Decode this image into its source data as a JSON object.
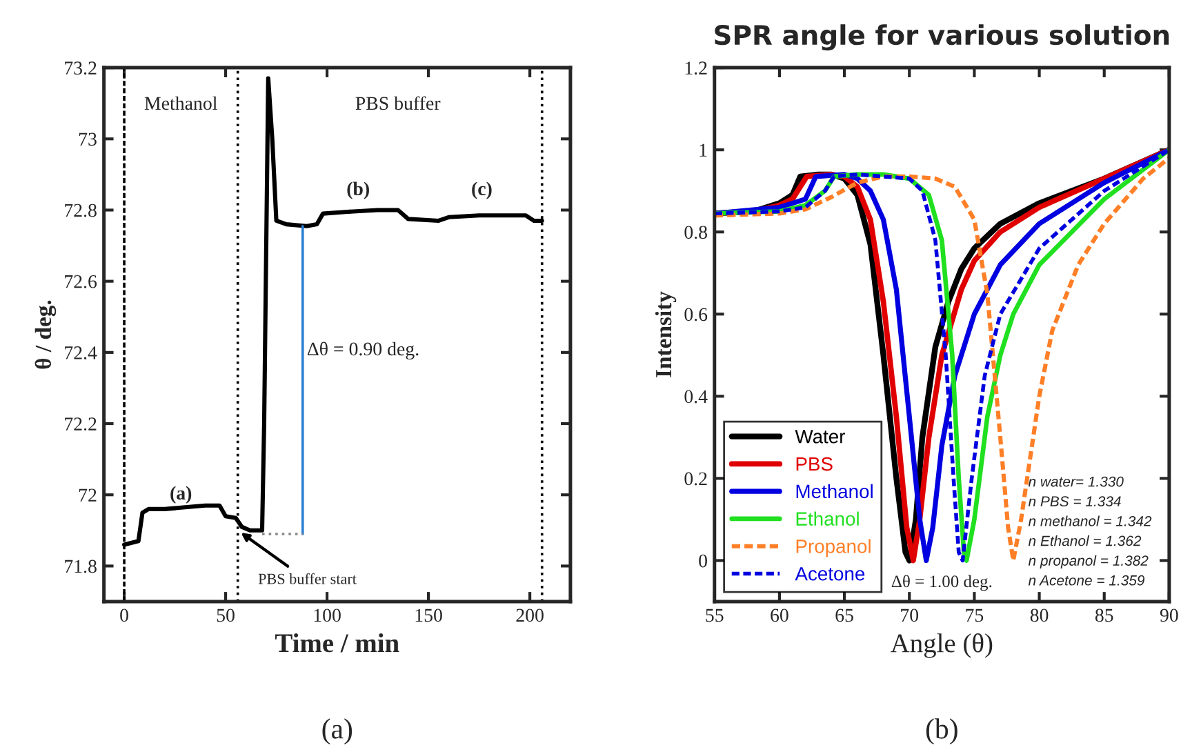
{
  "chart_data": [
    {
      "type": "line",
      "xlabel": "Time / min",
      "ylabel": "θ / deg.",
      "xlim": [
        -10,
        220
      ],
      "ylim": [
        71.7,
        73.2
      ],
      "xticks": [
        0,
        50,
        100,
        150,
        200
      ],
      "yticks": [
        71.8,
        72,
        72.2,
        72.4,
        72.6,
        72.8,
        73,
        73.2
      ],
      "grid": false,
      "legend": false,
      "series": [
        {
          "color": "#000000",
          "x": [
            0,
            7,
            9,
            12,
            20,
            30,
            40,
            47,
            50,
            55,
            58,
            62,
            68,
            69,
            71,
            73,
            75,
            80,
            90,
            95,
            98,
            110,
            125,
            135,
            140,
            155,
            160,
            175,
            198,
            202,
            206
          ],
          "values": [
            71.86,
            71.87,
            71.95,
            71.96,
            71.96,
            71.965,
            71.97,
            71.97,
            71.94,
            71.935,
            71.91,
            71.9,
            71.9,
            72.2,
            73.17,
            73.0,
            72.77,
            72.76,
            72.755,
            72.76,
            72.79,
            72.795,
            72.8,
            72.8,
            72.775,
            72.77,
            72.78,
            72.785,
            72.785,
            72.77,
            72.77
          ]
        },
        {
          "color": "#2a7fd4",
          "x": [
            88,
            88
          ],
          "values": [
            71.89,
            72.755
          ]
        },
        {
          "color": "#888888",
          "line_style": "dotted",
          "x": [
            68,
            88
          ],
          "values": [
            71.89,
            71.89
          ]
        }
      ],
      "ref_lines": [
        {
          "axis": "x",
          "value": 0,
          "line_style": "dashed",
          "color": "#000000"
        },
        {
          "axis": "x",
          "value": 56,
          "line_style": "dotted",
          "color": "#000000"
        },
        {
          "axis": "x",
          "value": 206,
          "line_style": "dotted",
          "color": "#000000"
        }
      ],
      "annotations": [
        "(a)",
        "Methanol",
        "PBS buffer",
        "(a)",
        "(b)",
        "(c)",
        "Δθ = 0.90 deg.",
        {
          "text": "PBS buffer start",
          "x": 56,
          "y": 71.9
        }
      ]
    },
    {
      "type": "line",
      "title": "SPR angle for various solution",
      "xlabel": "Angle (θ)",
      "ylabel": "Intensity",
      "xlim": [
        55,
        90
      ],
      "ylim": [
        -0.1,
        1.2
      ],
      "xticks": [
        55,
        60,
        65,
        70,
        75,
        80,
        85,
        90
      ],
      "yticks": [
        0,
        0.2,
        0.4,
        0.6,
        0.8,
        1,
        1.2
      ],
      "grid": false,
      "legend": "bottom left",
      "series": [
        {
          "name": "Water",
          "color": "#000000",
          "x": [
            55,
            58,
            60,
            61,
            61.6,
            63,
            64,
            65,
            66,
            67,
            68,
            69,
            69.7,
            70,
            70.5,
            71,
            72,
            73,
            74,
            75,
            77,
            80,
            85,
            90
          ],
          "values": [
            0.845,
            0.85,
            0.87,
            0.89,
            0.935,
            0.94,
            0.94,
            0.93,
            0.89,
            0.77,
            0.5,
            0.2,
            0.02,
            0.0,
            0.1,
            0.3,
            0.52,
            0.63,
            0.71,
            0.76,
            0.82,
            0.87,
            0.93,
            1.0
          ]
        },
        {
          "name": "PBS",
          "color": "#e00000",
          "x": [
            55,
            58,
            60,
            61,
            62.1,
            64,
            65,
            66,
            67,
            68,
            69,
            69.8,
            70.3,
            70.8,
            71.5,
            72.5,
            74,
            75,
            77,
            80,
            85,
            90
          ],
          "values": [
            0.845,
            0.85,
            0.865,
            0.88,
            0.935,
            0.94,
            0.935,
            0.91,
            0.83,
            0.63,
            0.35,
            0.08,
            0.0,
            0.1,
            0.3,
            0.5,
            0.66,
            0.73,
            0.8,
            0.86,
            0.93,
            1.0
          ]
        },
        {
          "name": "Methanol",
          "color": "#0000e0",
          "x": [
            55,
            60,
            62,
            62.8,
            65,
            66,
            67,
            68,
            69,
            70,
            70.8,
            71.3,
            71.8,
            72.5,
            73.5,
            75,
            77,
            80,
            85,
            90
          ],
          "values": [
            0.845,
            0.86,
            0.88,
            0.935,
            0.94,
            0.93,
            0.9,
            0.83,
            0.66,
            0.35,
            0.1,
            0.0,
            0.08,
            0.28,
            0.45,
            0.6,
            0.72,
            0.82,
            0.92,
            1.0
          ]
        },
        {
          "name": "Ethanol",
          "color": "#20e020",
          "x": [
            55,
            60,
            62,
            63.5,
            64.2,
            66,
            68,
            70,
            71.5,
            72.5,
            73.3,
            73.8,
            74.2,
            74.4,
            75,
            76,
            77,
            78,
            80,
            85,
            90
          ],
          "values": [
            0.845,
            0.85,
            0.865,
            0.9,
            0.935,
            0.94,
            0.94,
            0.93,
            0.89,
            0.78,
            0.5,
            0.2,
            0.02,
            0.0,
            0.1,
            0.35,
            0.5,
            0.6,
            0.72,
            0.88,
            1.0
          ]
        },
        {
          "name": "Propanol",
          "color": "#ff7f27",
          "line_style": "dashed",
          "x": [
            55,
            60,
            62,
            64,
            66,
            68,
            70,
            72,
            73.5,
            75,
            76,
            77,
            77.6,
            78,
            78.6,
            80,
            81,
            83,
            85,
            88,
            90
          ],
          "values": [
            0.84,
            0.845,
            0.855,
            0.885,
            0.92,
            0.935,
            0.935,
            0.93,
            0.91,
            0.83,
            0.65,
            0.3,
            0.08,
            0.0,
            0.1,
            0.4,
            0.56,
            0.72,
            0.82,
            0.93,
            0.98
          ]
        },
        {
          "name": "Acetone",
          "color": "#0000e0",
          "line_style": "dashed",
          "x": [
            55,
            60,
            62,
            63.5,
            64.2,
            66,
            70,
            71,
            72,
            72.8,
            73.4,
            73.8,
            74.1,
            74.8,
            75.8,
            77,
            80,
            85,
            90
          ],
          "values": [
            0.845,
            0.85,
            0.86,
            0.9,
            0.935,
            0.94,
            0.93,
            0.9,
            0.78,
            0.5,
            0.2,
            0.02,
            0.0,
            0.2,
            0.45,
            0.6,
            0.76,
            0.9,
            1.0
          ]
        }
      ],
      "annotations": [
        "(b)",
        "n water= 1.330",
        "n PBS = 1.334",
        "n methanol = 1.342",
        "n Ethanol = 1.362",
        "n propanol = 1.382",
        "n Acetone = 1.359",
        "Δθ = 1.00 deg."
      ]
    }
  ]
}
